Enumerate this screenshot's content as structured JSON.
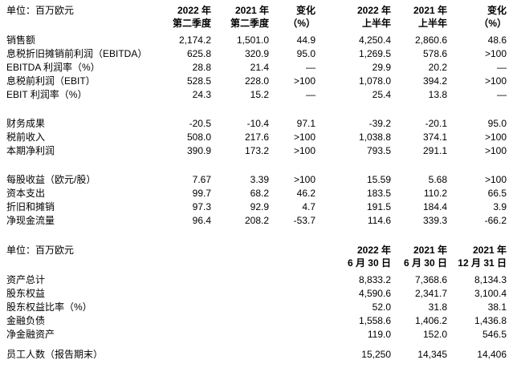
{
  "page": {
    "background_color": "#ffffff",
    "text_color": "#000000"
  },
  "quarterly_table": {
    "unit_label": "单位：百万欧元",
    "column_headers": [
      {
        "line1": "2022 年",
        "line2": "第二季度"
      },
      {
        "line1": "2021 年",
        "line2": "第二季度"
      },
      {
        "line1": "变化",
        "line2": "（%）"
      },
      {
        "line1": "2022 年",
        "line2": "上半年"
      },
      {
        "line1": "2021 年",
        "line2": "上半年"
      },
      {
        "line1": "变化",
        "line2": "（%）"
      }
    ],
    "row_groups": [
      {
        "rows": [
          {
            "label": "销售额",
            "values": [
              "2,174.2",
              "1,501.0",
              "44.9",
              "4,250.4",
              "2,860.6",
              "48.6"
            ]
          },
          {
            "label": "息税折旧摊销前利润（EBITDA）",
            "values": [
              "625.8",
              "320.9",
              "95.0",
              "1,269.5",
              "578.6",
              ">100"
            ]
          },
          {
            "label": "EBITDA 利润率（%）",
            "values": [
              "28.8",
              "21.4",
              "—",
              "29.9",
              "20.2",
              "—"
            ]
          },
          {
            "label": "息税前利润（EBIT）",
            "values": [
              "528.5",
              "228.0",
              ">100",
              "1,078.0",
              "394.2",
              ">100"
            ]
          },
          {
            "label": "EBIT 利润率（%）",
            "values": [
              "24.3",
              "15.2",
              "—",
              "25.4",
              "13.8",
              "—"
            ]
          }
        ]
      },
      {
        "rows": [
          {
            "label": "财务成果",
            "values": [
              "-20.5",
              "-10.4",
              "97.1",
              "-39.2",
              "-20.1",
              "95.0"
            ]
          },
          {
            "label": "税前收入",
            "values": [
              "508.0",
              "217.6",
              ">100",
              "1,038.8",
              "374.1",
              ">100"
            ]
          },
          {
            "label": "本期净利润",
            "values": [
              "390.9",
              "173.2",
              ">100",
              "793.5",
              "291.1",
              ">100"
            ]
          }
        ]
      },
      {
        "rows": [
          {
            "label": "每股收益（欧元/股）",
            "values": [
              "7.67",
              "3.39",
              ">100",
              "15.59",
              "5.68",
              ">100"
            ]
          },
          {
            "label": "资本支出",
            "values": [
              "99.7",
              "68.2",
              "46.2",
              "183.5",
              "110.2",
              "66.5"
            ]
          },
          {
            "label": "折旧和摊销",
            "values": [
              "97.3",
              "92.9",
              "4.7",
              "191.5",
              "184.4",
              "3.9"
            ]
          },
          {
            "label": "净现金流量",
            "values": [
              "96.4",
              "208.2",
              "-53.7",
              "114.6",
              "339.3",
              "-66.2"
            ]
          }
        ]
      }
    ]
  },
  "balance_table": {
    "unit_label": "单位：百万欧元",
    "column_headers": [
      {
        "line1": "2022 年",
        "line2": "6 月 30 日"
      },
      {
        "line1": "2021 年",
        "line2": "6 月 30 日"
      },
      {
        "line1": "2021 年",
        "line2": "12 月 31 日"
      }
    ],
    "row_groups": [
      {
        "rows": [
          {
            "label": "资产总计",
            "values": [
              "8,833.2",
              "7,368.6",
              "8,134.3"
            ]
          },
          {
            "label": "股东权益",
            "values": [
              "4,590.6",
              "2,341.7",
              "3,100.4"
            ]
          },
          {
            "label": "股东权益比率（%）",
            "values": [
              "52.0",
              "31.8",
              "38.1"
            ]
          },
          {
            "label": "金融负债",
            "values": [
              "1,558.6",
              "1,406.2",
              "1,436.8"
            ]
          },
          {
            "label": "净金融资产",
            "values": [
              "119.0",
              "152.0",
              "546.5"
            ]
          }
        ]
      },
      {
        "rows": [
          {
            "label": "员工人数（报告期末）",
            "values": [
              "15,250",
              "14,345",
              "14,406"
            ]
          }
        ]
      }
    ]
  }
}
